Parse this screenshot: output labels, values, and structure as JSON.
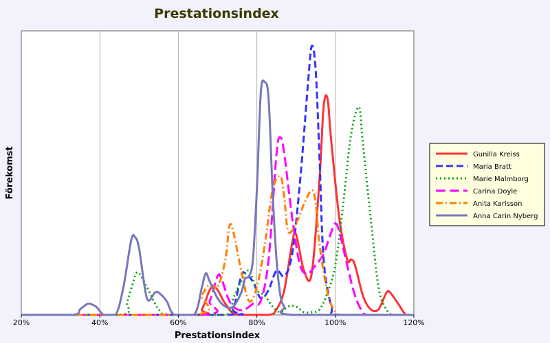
{
  "chart_data": {
    "type": "line",
    "title": "Prestationsindex",
    "xlabel": "Prestationsindex",
    "ylabel": "Förekomst",
    "xlim": [
      20,
      120
    ],
    "ylim": [
      0,
      100
    ],
    "x_ticks": [
      20,
      40,
      60,
      80,
      100,
      120
    ],
    "x_tick_labels": [
      "20%",
      "40%",
      "60%",
      "80%",
      "100%",
      "120%"
    ],
    "grid": "vertical",
    "legend_position": "right",
    "series": [
      {
        "name": "Gunilla Kreiss",
        "color": "#ff3333",
        "dash": "solid",
        "points": [
          [
            20,
            0
          ],
          [
            64,
            0
          ],
          [
            66,
            2
          ],
          [
            68,
            9
          ],
          [
            69,
            10
          ],
          [
            70,
            9
          ],
          [
            72,
            4
          ],
          [
            75,
            0
          ],
          [
            83,
            0
          ],
          [
            85,
            2
          ],
          [
            87,
            9
          ],
          [
            89,
            26
          ],
          [
            90,
            29
          ],
          [
            92,
            16
          ],
          [
            94,
            15
          ],
          [
            96,
            50
          ],
          [
            97,
            75
          ],
          [
            98,
            78
          ],
          [
            99,
            62
          ],
          [
            101,
            35
          ],
          [
            103,
            20
          ],
          [
            104,
            20
          ],
          [
            105,
            18
          ],
          [
            107,
            7
          ],
          [
            109,
            2
          ],
          [
            111,
            2
          ],
          [
            113,
            8
          ],
          [
            114,
            8
          ],
          [
            116,
            4
          ],
          [
            118,
            0
          ],
          [
            120,
            0
          ]
        ]
      },
      {
        "name": "Maria Bratt",
        "color": "#3333ff",
        "dash": "dashed",
        "points": [
          [
            20,
            0
          ],
          [
            72,
            0
          ],
          [
            74,
            2
          ],
          [
            76,
            14
          ],
          [
            77,
            15
          ],
          [
            79,
            12
          ],
          [
            81,
            6
          ],
          [
            83,
            9
          ],
          [
            85,
            16
          ],
          [
            87,
            14
          ],
          [
            89,
            22
          ],
          [
            91,
            48
          ],
          [
            93,
            83
          ],
          [
            94,
            97
          ],
          [
            95,
            88
          ],
          [
            96,
            55
          ],
          [
            97,
            20
          ],
          [
            99,
            3
          ],
          [
            101,
            0
          ],
          [
            120,
            0
          ]
        ]
      },
      {
        "name": "Marie Malmborg",
        "color": "#00a000",
        "dash": "dotted",
        "points": [
          [
            20,
            0
          ],
          [
            45,
            0
          ],
          [
            47,
            5
          ],
          [
            49,
            14
          ],
          [
            50,
            15
          ],
          [
            52,
            10
          ],
          [
            55,
            2
          ],
          [
            58,
            0
          ],
          [
            72,
            0
          ],
          [
            74,
            6
          ],
          [
            76,
            12
          ],
          [
            78,
            16
          ],
          [
            80,
            9
          ],
          [
            82,
            7
          ],
          [
            84,
            3
          ],
          [
            86,
            1
          ],
          [
            88,
            3
          ],
          [
            90,
            3
          ],
          [
            92,
            1
          ],
          [
            94,
            1
          ],
          [
            96,
            2
          ],
          [
            98,
            8
          ],
          [
            100,
            18
          ],
          [
            102,
            40
          ],
          [
            104,
            65
          ],
          [
            106,
            75
          ],
          [
            107,
            62
          ],
          [
            109,
            35
          ],
          [
            111,
            10
          ],
          [
            113,
            2
          ],
          [
            115,
            0
          ],
          [
            120,
            0
          ]
        ]
      },
      {
        "name": "Carina Doyle",
        "color": "#ff00ff",
        "dash": "longdash",
        "points": [
          [
            20,
            0
          ],
          [
            66,
            0
          ],
          [
            68,
            5
          ],
          [
            70,
            14
          ],
          [
            71,
            13
          ],
          [
            73,
            5
          ],
          [
            75,
            2
          ],
          [
            77,
            2
          ],
          [
            79,
            4
          ],
          [
            81,
            5
          ],
          [
            83,
            20
          ],
          [
            85,
            58
          ],
          [
            86,
            64
          ],
          [
            87,
            58
          ],
          [
            89,
            35
          ],
          [
            91,
            18
          ],
          [
            93,
            15
          ],
          [
            95,
            18
          ],
          [
            97,
            22
          ],
          [
            99,
            30
          ],
          [
            100,
            33
          ],
          [
            101,
            30
          ],
          [
            103,
            18
          ],
          [
            105,
            7
          ],
          [
            107,
            1
          ],
          [
            109,
            0
          ],
          [
            120,
            0
          ]
        ]
      },
      {
        "name": "Anita Karlsson",
        "color": "#ff8000",
        "dash": "dashdot",
        "points": [
          [
            20,
            0
          ],
          [
            64,
            0
          ],
          [
            66,
            7
          ],
          [
            68,
            11
          ],
          [
            70,
            10
          ],
          [
            72,
            20
          ],
          [
            73,
            32
          ],
          [
            74,
            30
          ],
          [
            76,
            16
          ],
          [
            78,
            5
          ],
          [
            80,
            10
          ],
          [
            82,
            25
          ],
          [
            84,
            45
          ],
          [
            86,
            50
          ],
          [
            87,
            42
          ],
          [
            88,
            30
          ],
          [
            90,
            33
          ],
          [
            92,
            40
          ],
          [
            94,
            45
          ],
          [
            95,
            40
          ],
          [
            96,
            25
          ],
          [
            98,
            8
          ],
          [
            100,
            1
          ],
          [
            102,
            0
          ],
          [
            120,
            0
          ]
        ]
      },
      {
        "name": "Anna Carin Nyberg",
        "color": "#7777bb",
        "dash": "solid",
        "points": [
          [
            20,
            0
          ],
          [
            33,
            0
          ],
          [
            35,
            2
          ],
          [
            37,
            4
          ],
          [
            39,
            3
          ],
          [
            41,
            0
          ],
          [
            44,
            0
          ],
          [
            46,
            10
          ],
          [
            48,
            27
          ],
          [
            49,
            28
          ],
          [
            50,
            24
          ],
          [
            52,
            6
          ],
          [
            54,
            8
          ],
          [
            55,
            8
          ],
          [
            57,
            5
          ],
          [
            59,
            0
          ],
          [
            64,
            0
          ],
          [
            66,
            10
          ],
          [
            67,
            15
          ],
          [
            68,
            12
          ],
          [
            70,
            6
          ],
          [
            72,
            3
          ],
          [
            74,
            3
          ],
          [
            76,
            8
          ],
          [
            77,
            13
          ],
          [
            78,
            14
          ],
          [
            79,
            20
          ],
          [
            80,
            45
          ],
          [
            81,
            80
          ],
          [
            82,
            84
          ],
          [
            83,
            78
          ],
          [
            84,
            45
          ],
          [
            85,
            20
          ],
          [
            86,
            7
          ],
          [
            87,
            3
          ],
          [
            89,
            0
          ],
          [
            120,
            0
          ]
        ]
      }
    ]
  }
}
